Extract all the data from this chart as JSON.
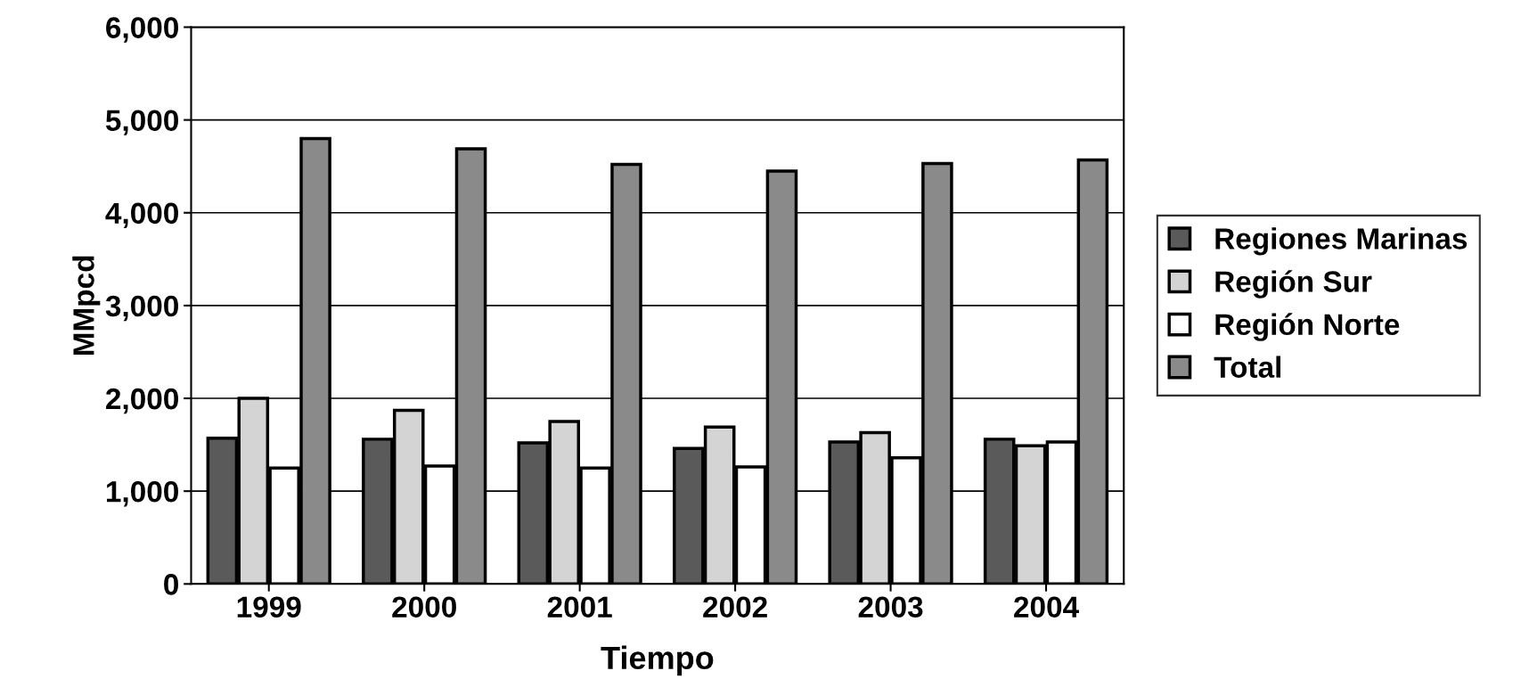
{
  "chart_data": {
    "type": "bar",
    "xlabel": "Tiempo",
    "ylabel": "MMpcd",
    "categories": [
      "1999",
      "2000",
      "2001",
      "2002",
      "2003",
      "2004"
    ],
    "series": [
      {
        "name": "Regiones Marinas",
        "color": "#5a5a5a",
        "values": [
          1570,
          1560,
          1520,
          1460,
          1530,
          1560
        ]
      },
      {
        "name": "Región Sur",
        "color": "#d4d4d4",
        "values": [
          2000,
          1870,
          1750,
          1690,
          1630,
          1490
        ]
      },
      {
        "name": "Región Norte",
        "color": "#ffffff",
        "values": [
          1250,
          1270,
          1250,
          1260,
          1360,
          1530
        ]
      },
      {
        "name": "Total",
        "color": "#8a8a8a",
        "values": [
          4800,
          4690,
          4520,
          4450,
          4530,
          4570
        ]
      }
    ],
    "ylim": [
      0,
      6000
    ],
    "yticks": [
      {
        "value": 0,
        "label": "0"
      },
      {
        "value": 1000,
        "label": "1,000"
      },
      {
        "value": 2000,
        "label": "2,000"
      },
      {
        "value": 3000,
        "label": "3,000"
      },
      {
        "value": 4000,
        "label": "4,000"
      },
      {
        "value": 5000,
        "label": "5,000"
      },
      {
        "value": 6000,
        "label": "6,000"
      }
    ],
    "grid": "y",
    "legend": "right"
  }
}
